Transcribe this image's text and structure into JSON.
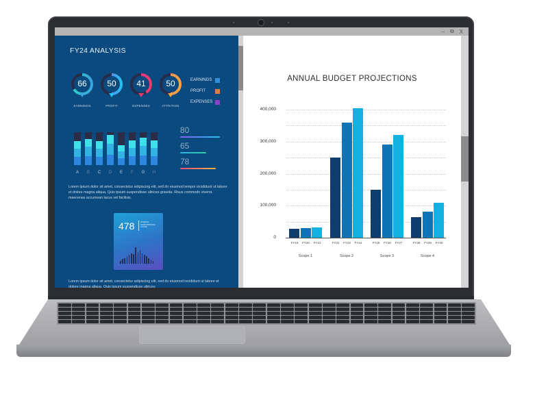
{
  "window": {
    "controls": {
      "minimize": "–",
      "restore": "⧉",
      "close": "X"
    }
  },
  "left_panel": {
    "title": "FY24 ANALYSIS",
    "gauges": [
      {
        "value": "66",
        "label": "EARNINGS",
        "percent": 66,
        "colors": [
          "#2bd3c7",
          "#3aa3e0"
        ]
      },
      {
        "value": "50",
        "label": "PROFIT",
        "percent": 50,
        "colors": [
          "#8a5cf0",
          "#22c3f0"
        ]
      },
      {
        "value": "41",
        "label": "EXPENSES",
        "percent": 41,
        "colors": [
          "#f02fa0",
          "#e83d6a"
        ]
      },
      {
        "value": "50",
        "label": "ATTRITION",
        "percent": 50,
        "colors": [
          "#f07a6a",
          "#f4a640"
        ]
      }
    ],
    "legend": [
      {
        "label": "EARNINGS",
        "color": "#2e8fd8"
      },
      {
        "label": "PROFIT",
        "color": "#e07b45"
      },
      {
        "label": "EXPENSES",
        "color": "#8c3fc7"
      }
    ],
    "stacked_bars": {
      "labels": [
        "A",
        "B",
        "C",
        "D",
        "E",
        "F",
        "G",
        "H"
      ],
      "dim_labels": [
        "B",
        "D",
        "F",
        "H"
      ],
      "fill_percent": [
        72,
        80,
        72,
        92,
        60,
        76,
        84,
        76
      ]
    },
    "kpis": [
      {
        "value": "80",
        "line_width": 58,
        "gradient": [
          "#8a5cf0",
          "#22c3f0"
        ]
      },
      {
        "value": "65",
        "line_width": 38,
        "gradient": [
          "#2bb0e0",
          "#2bd3a7"
        ]
      },
      {
        "value": "78",
        "line_width": 52,
        "gradient": [
          "#f04a7a",
          "#f4b040"
        ]
      }
    ],
    "paragraph_1": "Lorem ipsum dolor sit amet, consectetur adipiscing elit, sed do eiusmod tempor incididunt ut labore et dolore magna aliqua. Quis ipsum suspendisse ultrices gravida. Risus commodo viverra maecenas accumsan lacus vel facilisis.",
    "score_card": {
      "value": "478",
      "caption": "OVERALL PERFORMANCE SCORE",
      "sparkline": [
        3,
        5,
        6,
        7,
        9,
        11,
        10,
        17,
        12,
        14,
        11,
        9,
        8,
        6,
        4,
        3
      ]
    },
    "paragraph_2": "Lorem ipsum dolor sit amet, consectetur adipiscing elit, sed do eiusmod incididunt ut labore et dolore magna aliqua. Quis ipsum suspendisse ultrices"
  },
  "chart_data": {
    "type": "bar",
    "title": "ANNUAL BUDGET PROJECTIONS",
    "xlabel": "",
    "ylabel": "",
    "ylim": [
      0,
      400000
    ],
    "yticks": [
      "400,000",
      "300,000",
      "200,000",
      "100,000",
      "0"
    ],
    "grid": true,
    "groups": [
      "Scope 1",
      "Scope 2",
      "Scope 3",
      "Scope 4"
    ],
    "categories": [
      "FY19",
      "FY20",
      "FY21",
      "FY22",
      "FY23",
      "FY24",
      "FY25",
      "FY26",
      "FY27",
      "FY28",
      "FY29",
      "FY30"
    ],
    "values": [
      28000,
      29000,
      32000,
      250000,
      360000,
      405000,
      150000,
      290000,
      320000,
      65000,
      82000,
      110000
    ],
    "colors": [
      "#0e3d6e",
      "#0e74b5",
      "#14b1e0"
    ]
  },
  "hardware": {
    "device": "laptop"
  }
}
